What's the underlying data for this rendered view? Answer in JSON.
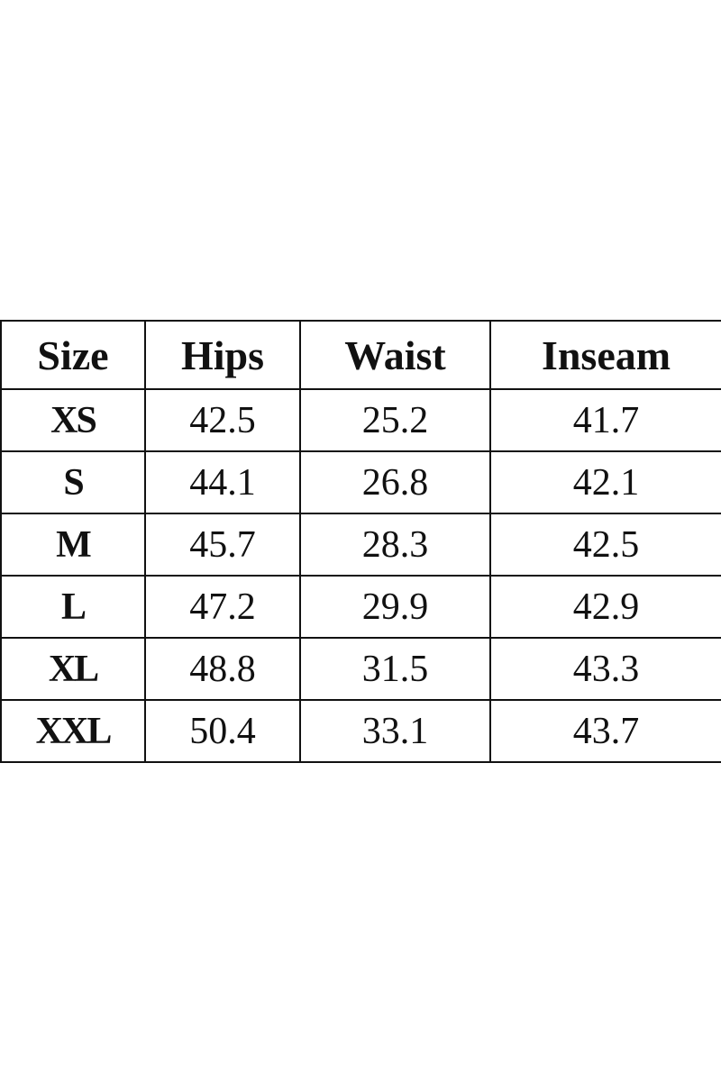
{
  "table": {
    "header": [
      "Size",
      "Hips",
      "Waist",
      "Inseam"
    ],
    "rows": [
      [
        "XS",
        "42.5",
        "25.2",
        "41.7"
      ],
      [
        "S",
        "44.1",
        "26.8",
        "42.1"
      ],
      [
        "M",
        "45.7",
        "28.3",
        "42.5"
      ],
      [
        "L",
        "47.2",
        "29.9",
        "42.9"
      ],
      [
        "XL",
        "48.8",
        "31.5",
        "43.3"
      ],
      [
        "XXL",
        "50.4",
        "33.1",
        "43.7"
      ]
    ]
  }
}
